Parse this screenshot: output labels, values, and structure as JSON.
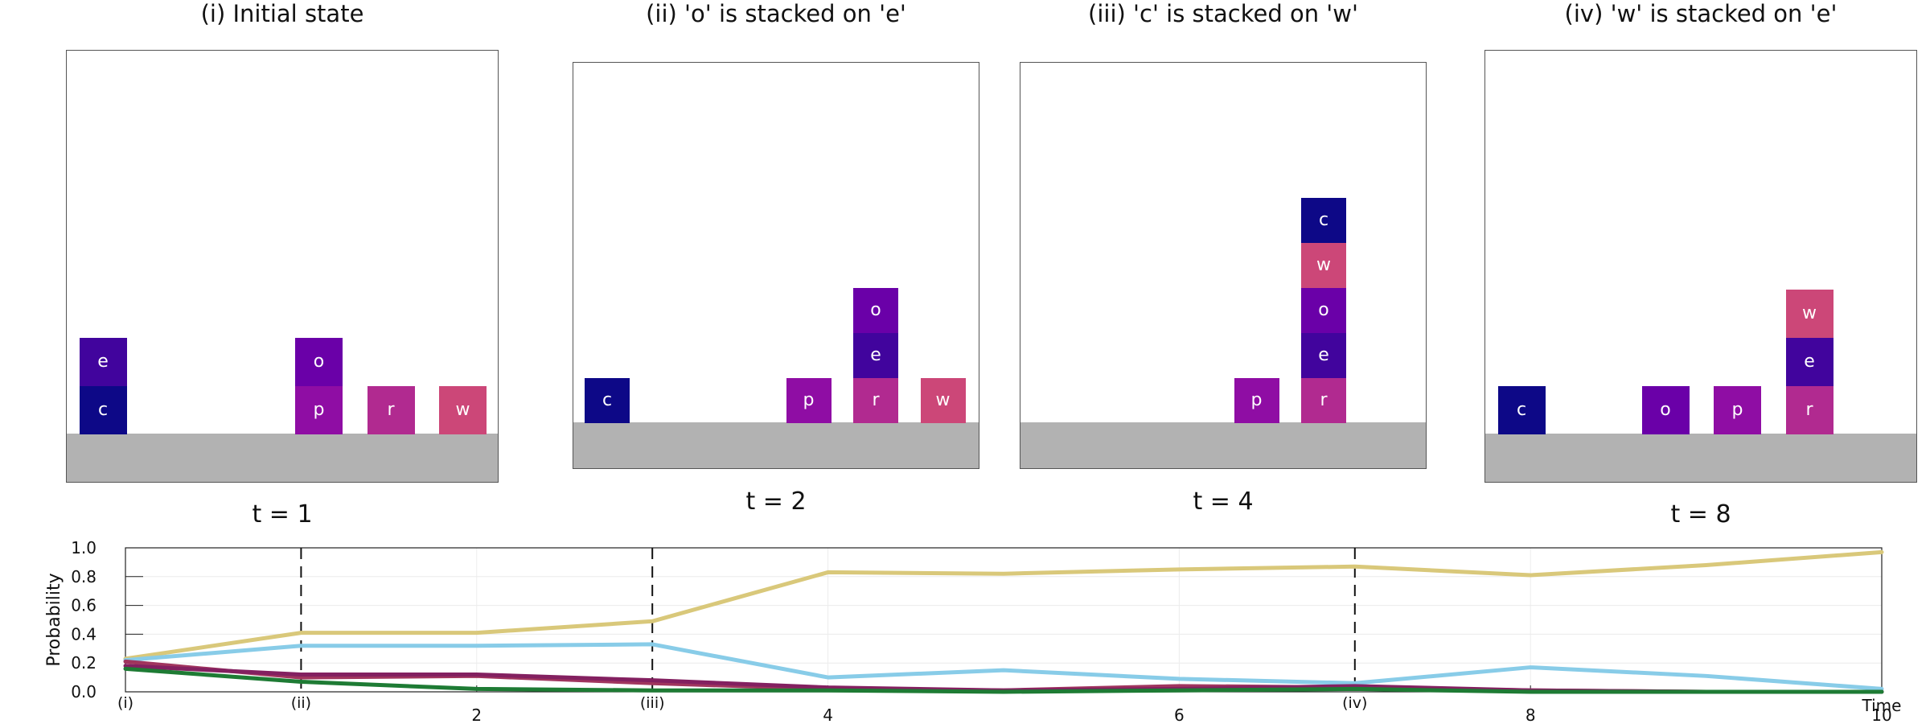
{
  "panels": [
    {
      "title": "(i) Initial state",
      "time_label": "t = 1",
      "columns": [
        [
          "c",
          "e"
        ],
        [],
        [],
        [
          "p",
          "o"
        ],
        [
          "r"
        ],
        [
          "w"
        ]
      ],
      "num_columns": 6
    },
    {
      "title": "(ii) 'o' is stacked on 'e'",
      "time_label": "t = 2",
      "columns": [
        [
          "c"
        ],
        [],
        [],
        [
          "p"
        ],
        [
          "r",
          "e",
          "o"
        ],
        [
          "w"
        ]
      ],
      "num_columns": 6
    },
    {
      "title": "(iii) 'c' is stacked on 'w'",
      "time_label": "t = 4",
      "columns": [
        [],
        [],
        [],
        [
          "p"
        ],
        [
          "r",
          "e",
          "o",
          "w",
          "c"
        ],
        []
      ],
      "num_columns": 6
    },
    {
      "title": "(iv) 'w' is stacked on 'e'",
      "time_label": "t = 8",
      "columns": [
        [
          "c"
        ],
        [],
        [
          "o"
        ],
        [
          "p"
        ],
        [
          "r",
          "e",
          "w"
        ],
        []
      ],
      "num_columns": 6
    }
  ],
  "block_colors": {
    "c": "#0d0887",
    "e": "#41049d",
    "o": "#6a00a8",
    "p": "#8f0da4",
    "r": "#b12a90",
    "w": "#cc4778"
  },
  "chart_data": {
    "type": "line",
    "ylabel": "Probability",
    "xlabel": "Time",
    "xlim": [
      0,
      10
    ],
    "ylim": [
      0,
      1
    ],
    "x_ticks": [
      2,
      4,
      6,
      8,
      10
    ],
    "y_ticks": [
      "0.0",
      "0.2",
      "0.4",
      "0.6",
      "0.8",
      "1.0"
    ],
    "event_markers": [
      {
        "x": 0,
        "label": "(i)"
      },
      {
        "x": 1,
        "label": "(ii)"
      },
      {
        "x": 3,
        "label": "(iii)"
      },
      {
        "x": 7,
        "label": "(iv)"
      }
    ],
    "x": [
      0,
      1,
      2,
      3,
      4,
      5,
      6,
      7,
      8,
      9,
      10
    ],
    "series": [
      {
        "color": "#d9c87a",
        "values": [
          0.23,
          0.41,
          0.41,
          0.49,
          0.83,
          0.82,
          0.85,
          0.87,
          0.81,
          0.88,
          0.97
        ]
      },
      {
        "color": "#88cce8",
        "values": [
          0.22,
          0.32,
          0.32,
          0.33,
          0.1,
          0.15,
          0.09,
          0.06,
          0.17,
          0.11,
          0.02
        ]
      },
      {
        "color": "#a0355e",
        "values": [
          0.21,
          0.1,
          0.11,
          0.06,
          0.02,
          0.01,
          0.04,
          0.03,
          0.01,
          0.0,
          0.0
        ]
      },
      {
        "color": "#832060",
        "values": [
          0.18,
          0.12,
          0.12,
          0.08,
          0.03,
          0.01,
          0.02,
          0.04,
          0.01,
          0.0,
          0.0
        ]
      },
      {
        "color": "#1e7b34",
        "values": [
          0.16,
          0.07,
          0.02,
          0.01,
          0.01,
          0.0,
          0.01,
          0.02,
          0.0,
          0.0,
          0.0
        ]
      }
    ]
  }
}
